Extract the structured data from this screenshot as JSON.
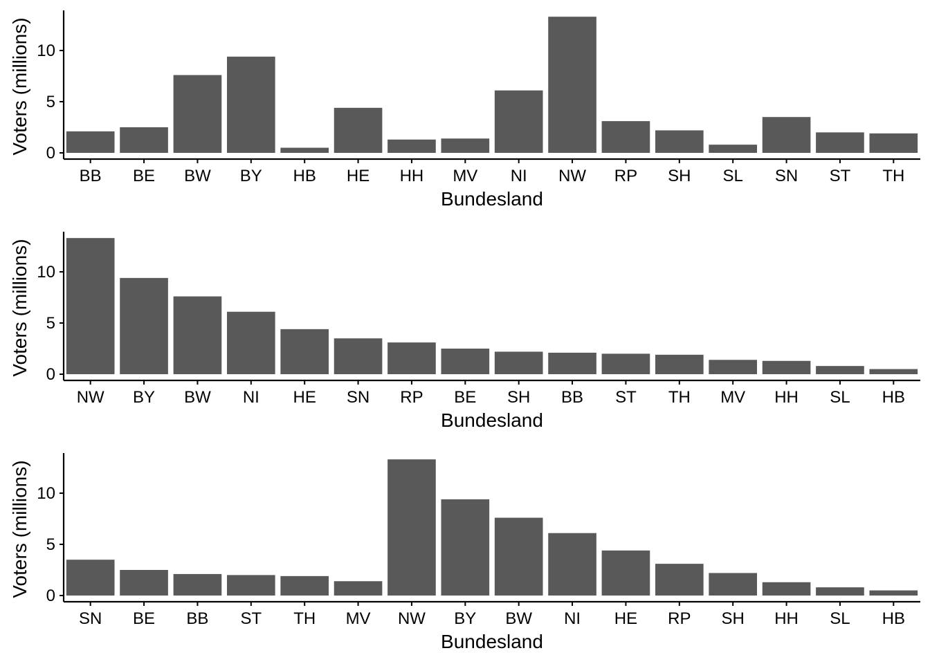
{
  "chart_data": [
    {
      "type": "bar",
      "categories": [
        "BB",
        "BE",
        "BW",
        "BY",
        "HB",
        "HE",
        "HH",
        "MV",
        "NI",
        "NW",
        "RP",
        "SH",
        "SL",
        "SN",
        "ST",
        "TH"
      ],
      "values": [
        2.1,
        2.5,
        7.6,
        9.4,
        0.5,
        4.4,
        1.3,
        1.4,
        6.1,
        13.3,
        3.1,
        2.2,
        0.8,
        3.5,
        2.0,
        1.9
      ],
      "xlabel": "Bundesland",
      "ylabel": "Voters (millions)",
      "yticks": [
        0,
        5,
        10
      ],
      "ylim": [
        0,
        13.3
      ],
      "color": "#595959"
    },
    {
      "type": "bar",
      "categories": [
        "NW",
        "BY",
        "BW",
        "NI",
        "HE",
        "SN",
        "RP",
        "BE",
        "SH",
        "BB",
        "ST",
        "TH",
        "MV",
        "HH",
        "SL",
        "HB"
      ],
      "values": [
        13.3,
        9.4,
        7.6,
        6.1,
        4.4,
        3.5,
        3.1,
        2.5,
        2.2,
        2.1,
        2.0,
        1.9,
        1.4,
        1.3,
        0.8,
        0.5
      ],
      "xlabel": "Bundesland",
      "ylabel": "Voters (millions)",
      "yticks": [
        0,
        5,
        10
      ],
      "ylim": [
        0,
        13.3
      ],
      "color": "#595959"
    },
    {
      "type": "bar",
      "categories": [
        "SN",
        "BE",
        "BB",
        "ST",
        "TH",
        "MV",
        "NW",
        "BY",
        "BW",
        "NI",
        "HE",
        "RP",
        "SH",
        "HH",
        "SL",
        "HB"
      ],
      "values": [
        3.5,
        2.5,
        2.1,
        2.0,
        1.9,
        1.4,
        13.3,
        9.4,
        7.6,
        6.1,
        4.4,
        3.1,
        2.2,
        1.3,
        0.8,
        0.5
      ],
      "xlabel": "Bundesland",
      "ylabel": "Voters (millions)",
      "yticks": [
        0,
        5,
        10
      ],
      "ylim": [
        0,
        13.3
      ],
      "color": "#595959"
    }
  ]
}
